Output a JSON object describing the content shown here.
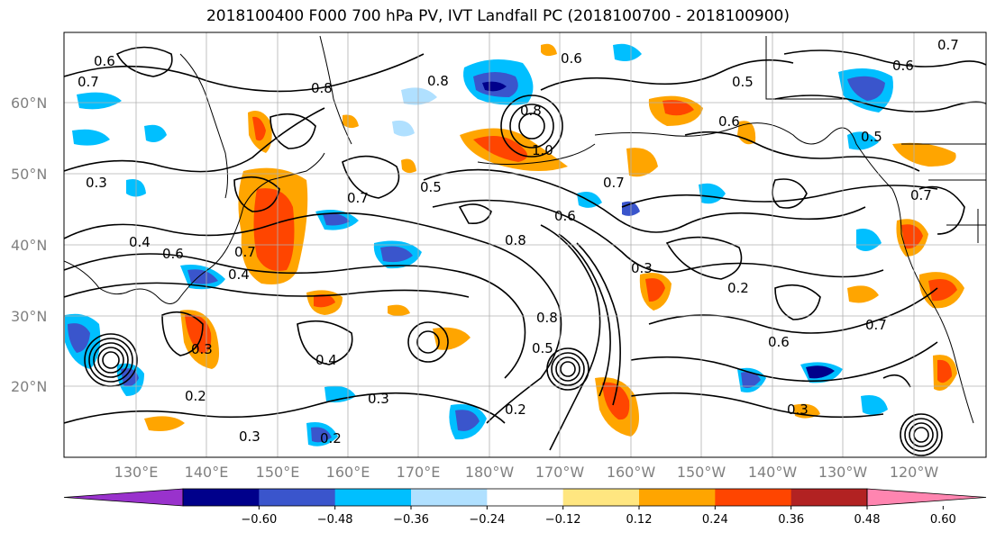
{
  "title": "2018100400 F000 700 hPa PV, IVT Landfall PC (2018100700 - 2018100900)",
  "lat_labels": [
    "60°N",
    "50°N",
    "40°N",
    "30°N",
    "20°N"
  ],
  "lon_labels": [
    "130°E",
    "140°E",
    "150°E",
    "160°E",
    "170°E",
    "180°W",
    "170°W",
    "160°W",
    "150°W",
    "140°W",
    "130°W",
    "120°W"
  ],
  "colorbar": {
    "ticks": [
      "−0.60",
      "−0.48",
      "−0.36",
      "−0.24",
      "−0.12",
      "0.12",
      "0.24",
      "0.36",
      "0.48",
      "0.60"
    ],
    "colors": [
      "#9932CC",
      "#00008B",
      "#3A55CC",
      "#00BFFF",
      "#B0E0FF",
      "#FFFFFF",
      "#FFE680",
      "#FFA500",
      "#FF4500",
      "#B22222",
      "#FF85B0"
    ]
  },
  "contour_labels": [
    "0.6",
    "0.7",
    "0.8",
    "0.6",
    "0.5",
    "0.8",
    "0.6",
    "0.5",
    "0.8",
    "0.6",
    "1.0",
    "0.3",
    "0.7",
    "0.5",
    "0.7",
    "0.6",
    "0.7",
    "0.4",
    "0.6",
    "0.8",
    "0.4",
    "0.7",
    "0.3",
    "0.2",
    "0.7",
    "0.4",
    "0.3",
    "0.8",
    "0.5",
    "0.2",
    "0.3",
    "0.2",
    "0.6",
    "0.7",
    "0.3",
    "0.3",
    "0.2"
  ]
}
